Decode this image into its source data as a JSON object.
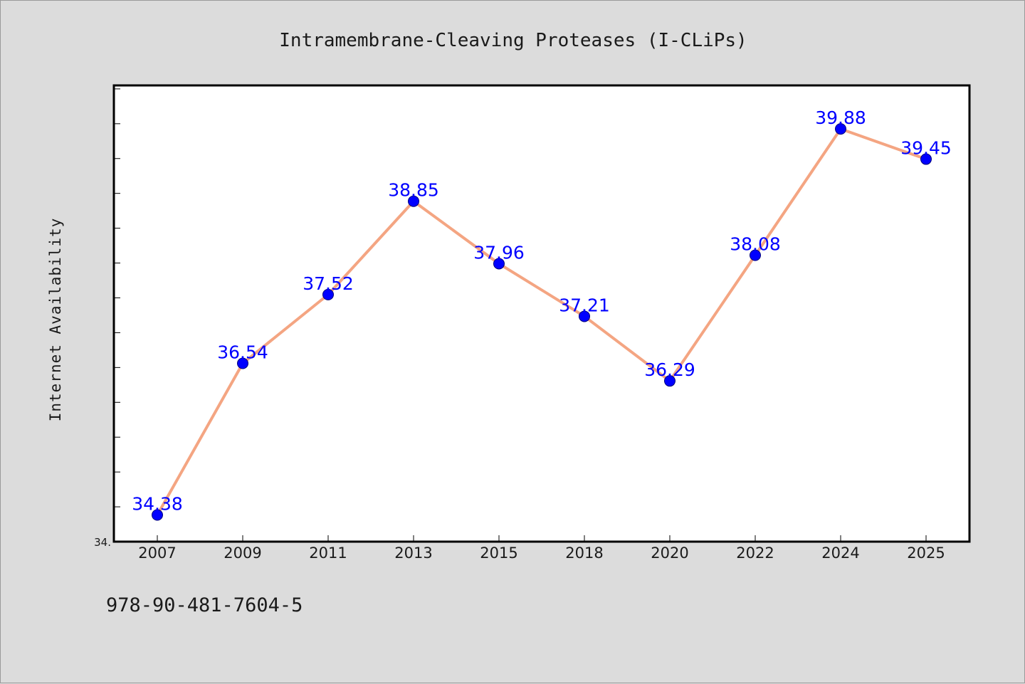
{
  "chart_data": {
    "type": "line",
    "title": "Intramembrane-Cleaving Proteases (I-CLiPs)",
    "xlabel": "",
    "ylabel": "Internet Availability",
    "categories": [
      "2007",
      "2009",
      "2011",
      "2013",
      "2015",
      "2018",
      "2020",
      "2022",
      "2024",
      "2025"
    ],
    "series": [
      {
        "values": [
          34.38,
          36.54,
          37.52,
          38.85,
          37.96,
          37.21,
          36.29,
          38.08,
          39.88,
          39.45
        ],
        "labels": [
          "34.38",
          "36.54",
          "37.52",
          "38.85",
          "37.96",
          "37.21",
          "36.29",
          "38.08",
          "39.88",
          "39.45"
        ],
        "color": "#f4a582",
        "marker_color": "#0000ff"
      }
    ],
    "ylim": [
      34.0,
      40.5
    ],
    "y_tick_label": "34.",
    "y_minor_ticks": 13,
    "grid": false,
    "legend": "none"
  },
  "footer": {
    "isbn": "978-90-481-7604-5"
  },
  "colors": {
    "background": "#dcdcdc",
    "plot_area": "#ffffff",
    "line": "#f4a582",
    "marker": "#0000ff",
    "data_label": "#0000ff"
  }
}
